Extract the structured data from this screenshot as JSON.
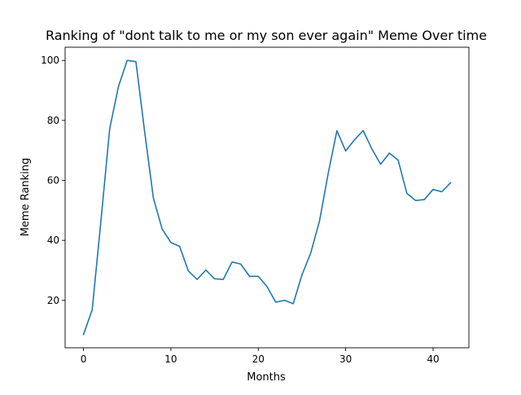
{
  "chart_data": {
    "type": "line",
    "title": "Ranking of \"dont talk to me or my son ever again\" Meme Over time",
    "xlabel": "Months",
    "ylabel": "Meme Ranking",
    "xlim": [
      -2.1,
      44.1
    ],
    "ylim": [
      4.2,
      104.4
    ],
    "xticks": [
      0,
      10,
      20,
      30,
      40
    ],
    "yticks": [
      20,
      40,
      60,
      80,
      100
    ],
    "grid": false,
    "legend": "none",
    "series": [
      {
        "color": "#1f77b4",
        "x": [
          0,
          1,
          2,
          3,
          4,
          5,
          6,
          7,
          8,
          9,
          10,
          11,
          12,
          13,
          14,
          15,
          16,
          17,
          18,
          19,
          20,
          21,
          22,
          23,
          24,
          25,
          26,
          27,
          28,
          29,
          30,
          31,
          32,
          33,
          34,
          35,
          36,
          37,
          38,
          39,
          40,
          41,
          42
        ],
        "values": [
          8.6,
          16.9,
          46.6,
          77.2,
          91.3,
          100.0,
          99.6,
          76.2,
          54.1,
          43.8,
          39.3,
          38.0,
          29.8,
          27.0,
          30.1,
          27.2,
          27.0,
          32.8,
          32.1,
          28.0,
          28.0,
          24.6,
          19.4,
          20.0,
          18.9,
          28.5,
          35.8,
          46.4,
          62.3,
          76.6,
          69.8,
          73.5,
          76.6,
          70.5,
          65.4,
          69.1,
          66.8,
          55.7,
          53.3,
          53.6,
          57.0,
          56.2,
          59.2
        ]
      }
    ]
  }
}
